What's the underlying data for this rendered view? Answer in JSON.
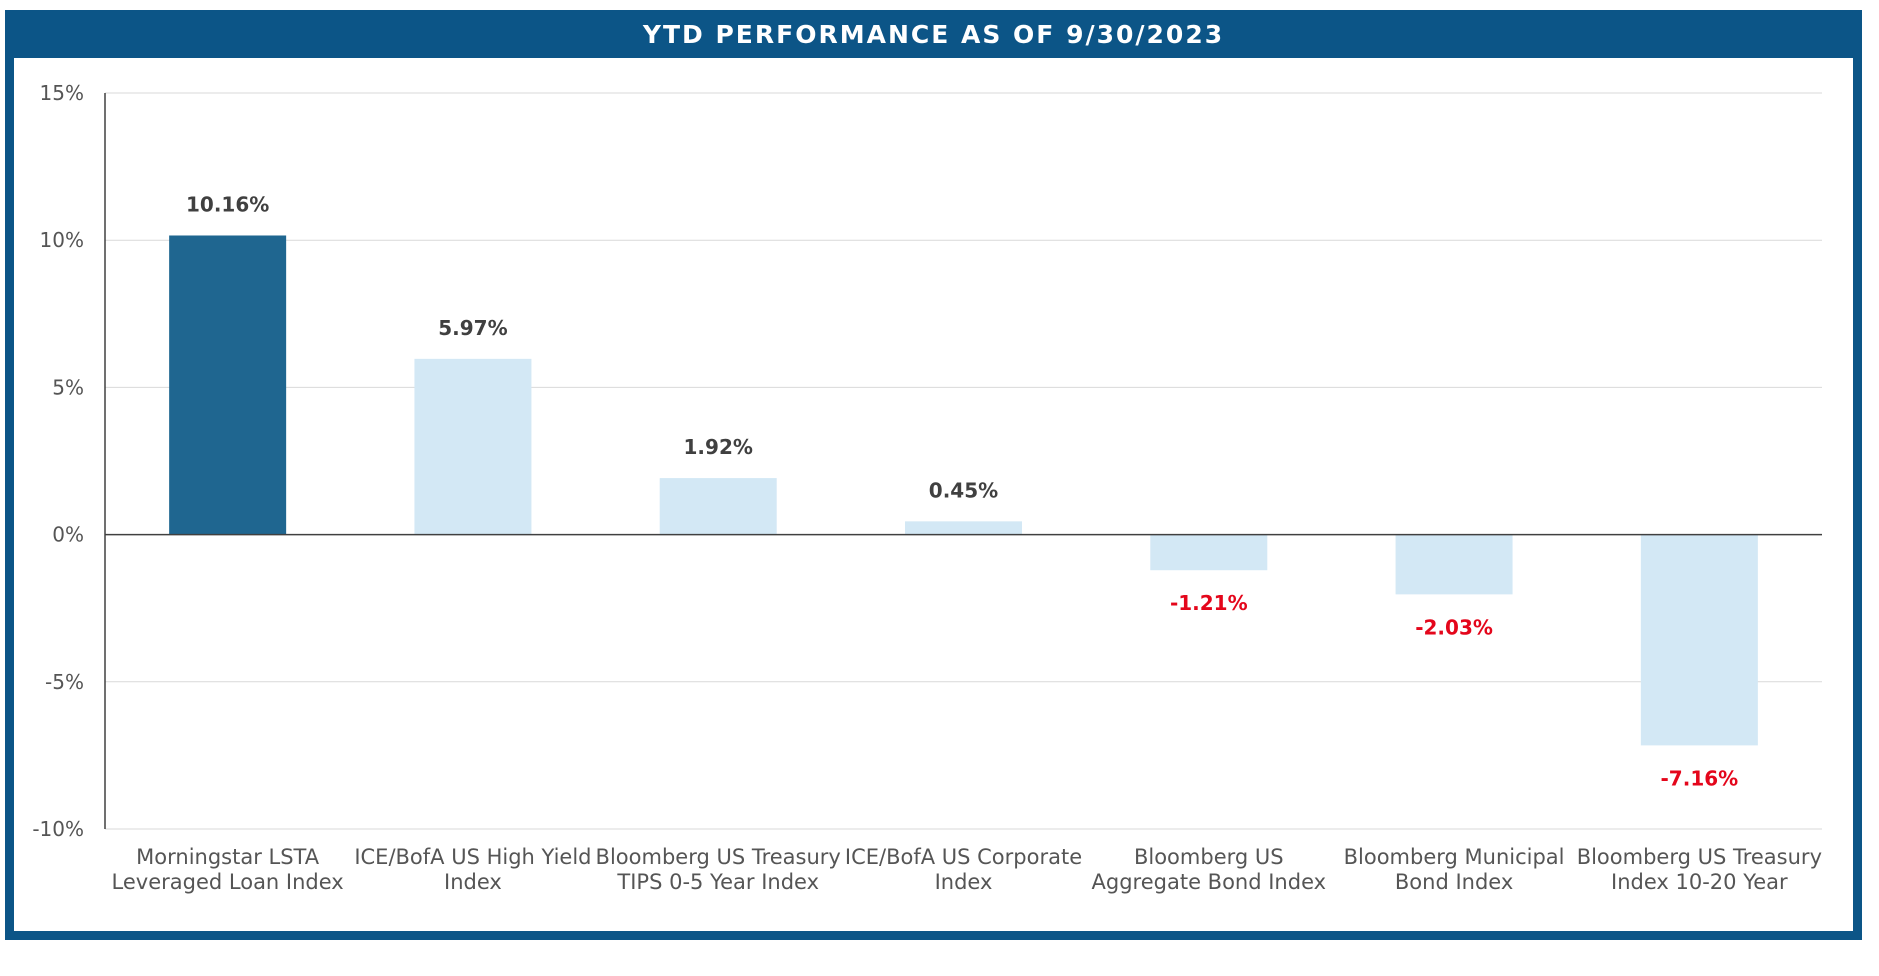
{
  "chart_data": {
    "type": "bar",
    "title": "YTD PERFORMANCE AS OF 9/30/2023",
    "xlabel": "",
    "ylabel": "",
    "ylim": [
      -10,
      15
    ],
    "yticks": [
      15,
      10,
      5,
      0,
      -5,
      -10
    ],
    "ytick_labels": [
      "15%",
      "10%",
      "5%",
      "0%",
      "-5%",
      "-10%"
    ],
    "grid": true,
    "categories": [
      [
        "Morningstar LSTA",
        "Leveraged Loan Index"
      ],
      [
        "ICE/BofA US High Yield",
        "Index"
      ],
      [
        "Bloomberg US Treasury",
        "TIPS 0-5 Year Index"
      ],
      [
        "ICE/BofA US Corporate",
        "Index"
      ],
      [
        "Bloomberg US",
        "Aggregate Bond Index"
      ],
      [
        "Bloomberg Municipal",
        "Bond Index"
      ],
      [
        "Bloomberg US Treasury",
        "Index 10-20 Year"
      ]
    ],
    "values": [
      10.16,
      5.97,
      1.92,
      0.45,
      -1.21,
      -2.03,
      -7.16
    ],
    "data_labels": [
      "10.16%",
      "5.97%",
      "1.92%",
      "0.45%",
      "-1.21%",
      "-2.03%",
      "-7.16%"
    ],
    "colors": {
      "highlight_bar": "#1f6690",
      "bar": "#d3e8f5",
      "positive_label": "#404040",
      "negative_label": "#e4061b",
      "frame": "#0c5587",
      "grid": "#d9d9d9"
    },
    "highlight_index": 0
  }
}
